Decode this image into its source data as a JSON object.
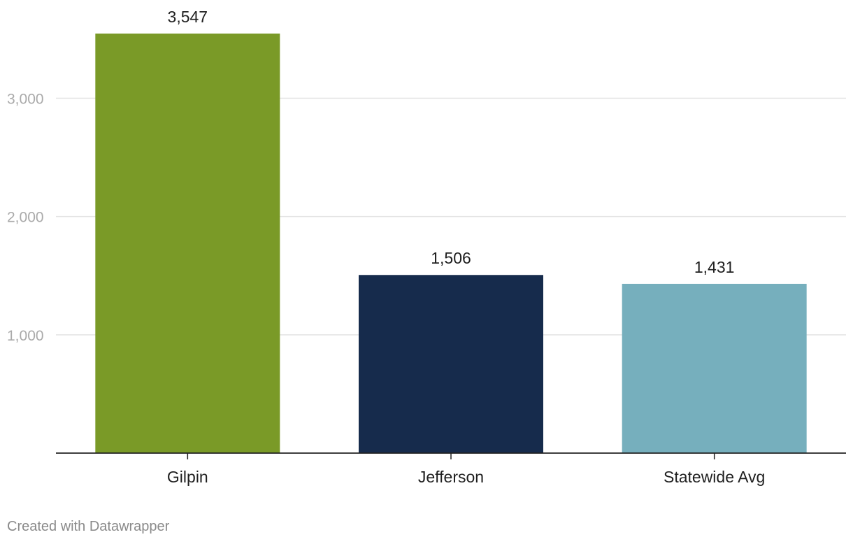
{
  "chart_data": {
    "type": "bar",
    "categories": [
      "Gilpin",
      "Jefferson",
      "Statewide Avg"
    ],
    "values": [
      3547,
      1506,
      1431
    ],
    "value_labels": [
      "3,547",
      "1,506",
      "1,431"
    ],
    "colors": [
      "#7a9a27",
      "#162b4c",
      "#76afbd"
    ],
    "yticks": [
      1000,
      2000,
      3000
    ],
    "ytick_labels": [
      "1,000",
      "2,000",
      "3,000"
    ],
    "ylim": [
      0,
      3547
    ],
    "grid": true,
    "title": "",
    "xlabel": "",
    "ylabel": ""
  },
  "footer": {
    "credit": "Created with Datawrapper"
  }
}
